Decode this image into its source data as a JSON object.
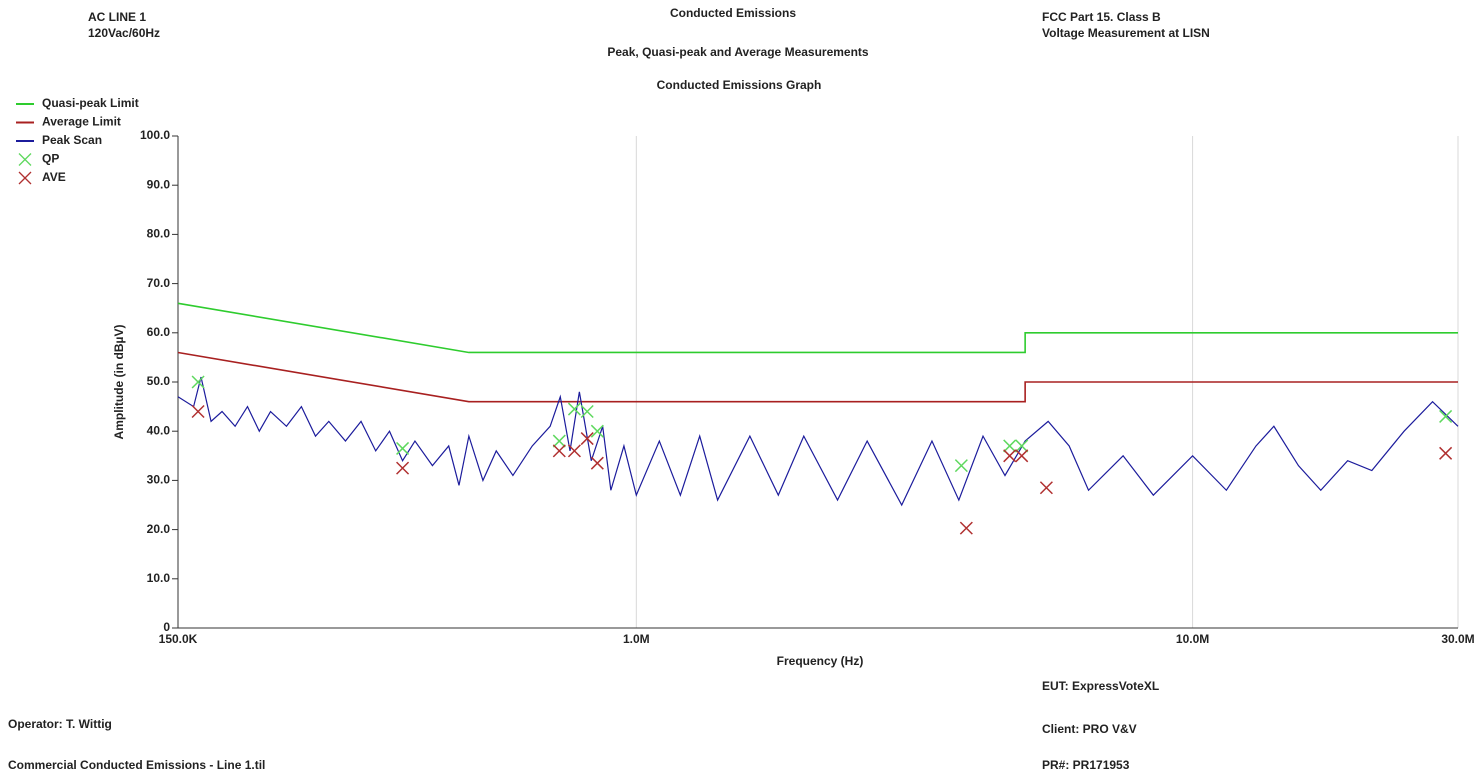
{
  "header": {
    "left": [
      "AC LINE 1",
      "120Vac/60Hz"
    ],
    "center": [
      "Conducted Emissions",
      "Peak, Quasi-peak and Average Measurements",
      "Conducted Emissions Graph"
    ],
    "right": [
      "FCC Part 15. Class B",
      "Voltage Measurement at LISN"
    ]
  },
  "chart_data": {
    "type": "line",
    "x_label": "Frequency (Hz)",
    "y_label": "Amplitude (in dBµV)",
    "x_scale": "log",
    "xlim": [
      150000,
      30000000
    ],
    "xticks": [
      {
        "value": 150000,
        "label": "150.0K"
      },
      {
        "value": 1000000,
        "label": "1.0M"
      },
      {
        "value": 10000000,
        "label": "10.0M"
      },
      {
        "value": 30000000,
        "label": "30.0M"
      }
    ],
    "ylim": [
      0,
      100
    ],
    "yticks": [
      0,
      {
        "value": 10,
        "label": "10.0"
      },
      {
        "value": 20,
        "label": "20.0"
      },
      {
        "value": 30,
        "label": "30.0"
      },
      {
        "value": 40,
        "label": "40.0"
      },
      {
        "value": 50,
        "label": "50.0"
      },
      {
        "value": 60,
        "label": "60.0"
      },
      {
        "value": 70,
        "label": "70.0"
      },
      {
        "value": 80,
        "label": "80.0"
      },
      {
        "value": 90,
        "label": "90.0"
      },
      {
        "value": 100,
        "label": "100.0"
      }
    ],
    "grid": "x",
    "legend": "top-left",
    "series": [
      {
        "name": "Quasi-peak Limit",
        "color": "#2ecc2e",
        "style": "line",
        "x": [
          150000,
          500000,
          5000000,
          5000000,
          30000000
        ],
        "values": [
          66,
          56,
          56,
          60,
          60
        ]
      },
      {
        "name": "Average Limit",
        "color": "#a82020",
        "style": "line",
        "x": [
          150000,
          500000,
          5000000,
          5000000,
          30000000
        ],
        "values": [
          56,
          46,
          46,
          50,
          50
        ]
      },
      {
        "name": "Peak Scan",
        "color": "#1c1c9c",
        "style": "line",
        "x": [
          150000,
          160000,
          165000,
          172000,
          180000,
          190000,
          200000,
          210000,
          220000,
          235000,
          250000,
          265000,
          280000,
          300000,
          320000,
          340000,
          360000,
          380000,
          400000,
          430000,
          460000,
          480000,
          500000,
          530000,
          560000,
          600000,
          650000,
          700000,
          730000,
          760000,
          790000,
          830000,
          870000,
          900000,
          950000,
          1000000,
          1100000,
          1200000,
          1300000,
          1400000,
          1600000,
          1800000,
          2000000,
          2300000,
          2600000,
          3000000,
          3400000,
          3800000,
          4200000,
          4600000,
          5000000,
          5500000,
          6000000,
          6500000,
          7500000,
          8500000,
          10000000,
          11500000,
          13000000,
          14000000,
          15500000,
          17000000,
          19000000,
          21000000,
          24000000,
          27000000,
          30000000
        ],
        "values": [
          47,
          45,
          51,
          42,
          44,
          41,
          45,
          40,
          44,
          41,
          45,
          39,
          42,
          38,
          42,
          36,
          40,
          34,
          38,
          33,
          37,
          29,
          39,
          30,
          36,
          31,
          37,
          41,
          47,
          36,
          48,
          34,
          41,
          28,
          37,
          27,
          38,
          27,
          39,
          26,
          39,
          27,
          39,
          26,
          38,
          25,
          38,
          26,
          39,
          31,
          38,
          42,
          37,
          28,
          35,
          27,
          35,
          28,
          37,
          41,
          33,
          28,
          34,
          32,
          40,
          46,
          41
        ]
      },
      {
        "name": "QP",
        "color": "#5ed85e",
        "style": "x-marker",
        "x": [
          163000,
          380000,
          727000,
          774000,
          816000,
          851000,
          3840000,
          4690000,
          4930000,
          28500000
        ],
        "values": [
          50,
          36.5,
          38,
          44.5,
          44,
          40,
          33,
          37,
          37,
          43
        ]
      },
      {
        "name": "AVE",
        "color": "#b03030",
        "style": "x-marker",
        "x": [
          163000,
          380000,
          727000,
          774000,
          816000,
          851000,
          3920000,
          4690000,
          4930000,
          5460000,
          28500000
        ],
        "values": [
          44,
          32.5,
          36,
          36,
          38.5,
          33.5,
          20.3,
          35,
          35,
          28.5,
          35.5
        ]
      }
    ]
  },
  "footer": {
    "eut": "EUT: ExpressVoteXL",
    "operator": "Operator: T. Wittig",
    "client": "Client: PRO V&V",
    "file": "Commercial Conducted Emissions - Line 1.til",
    "project": "PR#: PR171953"
  }
}
